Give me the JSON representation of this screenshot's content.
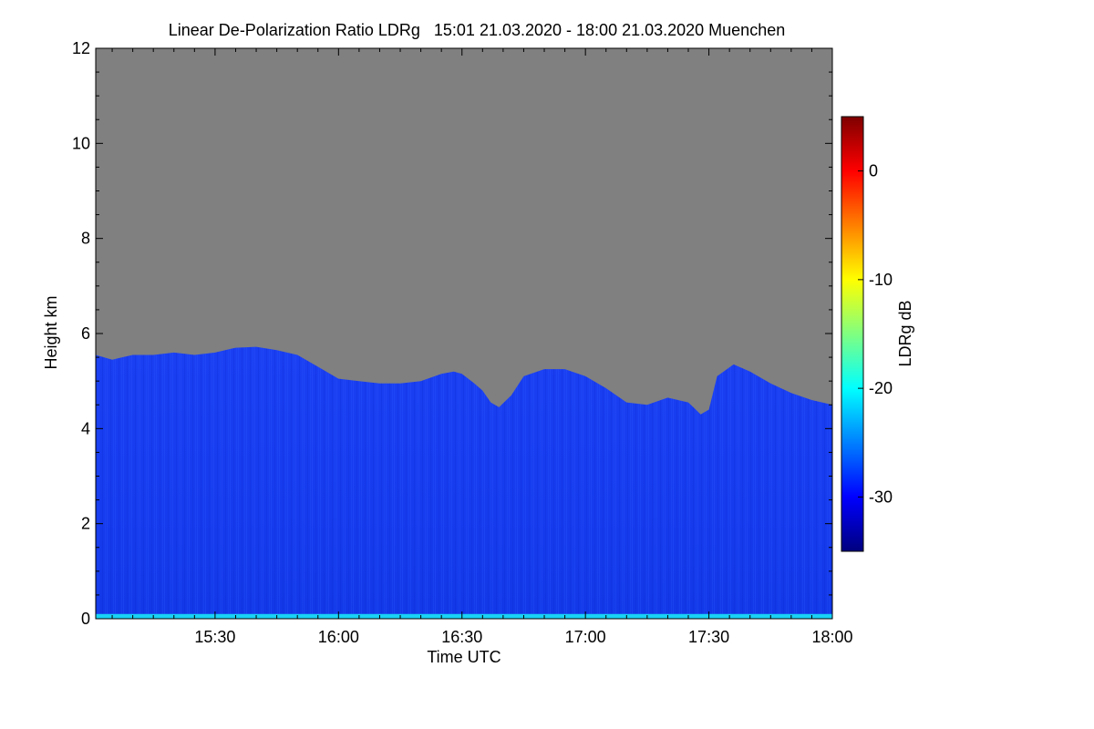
{
  "chart_data": {
    "type": "heatmap",
    "title": "Linear De-Polarization Ratio LDRg   15:01 21.03.2020 - 18:00 21.03.2020 Muenchen",
    "xlabel": "Time UTC",
    "ylabel": "Height km",
    "x_range_minutes_utc": [
      901,
      1080
    ],
    "x_ticks": [
      {
        "label": "15:30",
        "value": 930
      },
      {
        "label": "16:00",
        "value": 960
      },
      {
        "label": "16:30",
        "value": 990
      },
      {
        "label": "17:00",
        "value": 1020
      },
      {
        "label": "17:30",
        "value": 1050
      },
      {
        "label": "18:00",
        "value": 1080
      }
    ],
    "y_range_km": [
      0,
      12
    ],
    "y_ticks": [
      {
        "label": "0",
        "value": 0
      },
      {
        "label": "2",
        "value": 2
      },
      {
        "label": "4",
        "value": 4
      },
      {
        "label": "6",
        "value": 6
      },
      {
        "label": "8",
        "value": 8
      },
      {
        "label": "10",
        "value": 10
      },
      {
        "label": "12",
        "value": 12
      }
    ],
    "colorbar": {
      "label": "LDRg dB",
      "range_db": [
        -35,
        5
      ],
      "ticks": [
        {
          "label": "0",
          "value": 0
        },
        {
          "label": "-10",
          "value": -10
        },
        {
          "label": "-20",
          "value": -20
        },
        {
          "label": "-30",
          "value": -30
        }
      ],
      "colormap": [
        "#00007f",
        "#0000ff",
        "#0080ff",
        "#00ffff",
        "#80ff80",
        "#ffff00",
        "#ff8000",
        "#ff0000",
        "#7f0000"
      ]
    },
    "no_signal_color": "#808080",
    "typical_ldr_db": -28,
    "surface_layer": {
      "height_km": [
        0,
        0.1
      ],
      "ldr_db": -22
    },
    "signal_top_km": [
      {
        "t": 901,
        "h": 5.55
      },
      {
        "t": 905,
        "h": 5.45
      },
      {
        "t": 910,
        "h": 5.55
      },
      {
        "t": 915,
        "h": 5.55
      },
      {
        "t": 920,
        "h": 5.6
      },
      {
        "t": 925,
        "h": 5.55
      },
      {
        "t": 930,
        "h": 5.6
      },
      {
        "t": 935,
        "h": 5.7
      },
      {
        "t": 940,
        "h": 5.72
      },
      {
        "t": 945,
        "h": 5.65
      },
      {
        "t": 950,
        "h": 5.55
      },
      {
        "t": 955,
        "h": 5.3
      },
      {
        "t": 960,
        "h": 5.05
      },
      {
        "t": 965,
        "h": 5.0
      },
      {
        "t": 970,
        "h": 4.95
      },
      {
        "t": 975,
        "h": 4.95
      },
      {
        "t": 980,
        "h": 5.0
      },
      {
        "t": 985,
        "h": 5.15
      },
      {
        "t": 988,
        "h": 5.2
      },
      {
        "t": 990,
        "h": 5.15
      },
      {
        "t": 993,
        "h": 4.95
      },
      {
        "t": 995,
        "h": 4.8
      },
      {
        "t": 997,
        "h": 4.55
      },
      {
        "t": 999,
        "h": 4.45
      },
      {
        "t": 1002,
        "h": 4.7
      },
      {
        "t": 1005,
        "h": 5.1
      },
      {
        "t": 1010,
        "h": 5.25
      },
      {
        "t": 1015,
        "h": 5.25
      },
      {
        "t": 1020,
        "h": 5.1
      },
      {
        "t": 1025,
        "h": 4.85
      },
      {
        "t": 1030,
        "h": 4.55
      },
      {
        "t": 1035,
        "h": 4.5
      },
      {
        "t": 1040,
        "h": 4.65
      },
      {
        "t": 1045,
        "h": 4.55
      },
      {
        "t": 1048,
        "h": 4.3
      },
      {
        "t": 1050,
        "h": 4.4
      },
      {
        "t": 1052,
        "h": 5.1
      },
      {
        "t": 1056,
        "h": 5.35
      },
      {
        "t": 1060,
        "h": 5.2
      },
      {
        "t": 1065,
        "h": 4.95
      },
      {
        "t": 1070,
        "h": 4.75
      },
      {
        "t": 1075,
        "h": 4.6
      },
      {
        "t": 1080,
        "h": 4.5
      }
    ]
  }
}
